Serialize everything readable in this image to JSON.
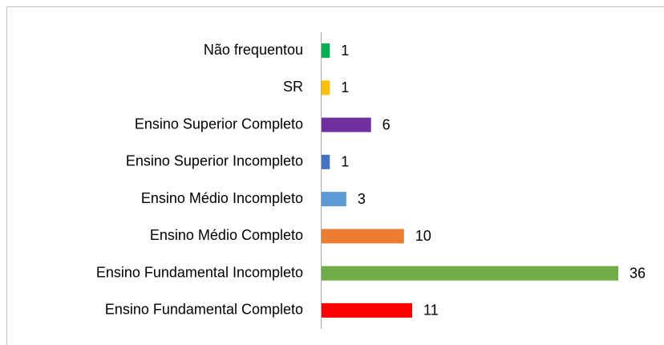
{
  "chart_data": {
    "type": "bar",
    "orientation": "horizontal",
    "categories": [
      "Não frequentou",
      "SR",
      "Ensino Superior Completo",
      "Ensino Superior Incompleto",
      "Ensino Médio Incompleto",
      "Ensino Médio Completo",
      "Ensino Fundamental Incompleto",
      "Ensino Fundamental Completo"
    ],
    "values": [
      1,
      1,
      6,
      1,
      3,
      10,
      36,
      11
    ],
    "colors": [
      "#00b050",
      "#ffc000",
      "#7030a0",
      "#4472c4",
      "#5b9bd5",
      "#ed7d31",
      "#70ad47",
      "#ff0000"
    ]
  }
}
